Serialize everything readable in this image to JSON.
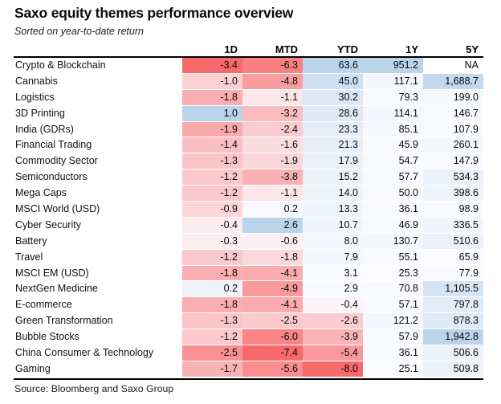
{
  "title": "Saxo equity themes performance overview",
  "subtitle": "Sorted on year-to-date return",
  "source": "Source: Bloomberg and Saxo Group",
  "na_label": "NA",
  "color_scale": {
    "negative_end": "#F8696B",
    "neutral": "#FCFCFF",
    "positive_end": "#BAD4EC",
    "normalization": "per-column, each sign scaled to column extreme, white at zero"
  },
  "chart_data": {
    "type": "heatmap",
    "title": "Saxo equity themes performance overview",
    "subtitle": "Sorted on year-to-date return",
    "source": "Source: Bloomberg and Saxo Group",
    "columns": [
      "1D",
      "MTD",
      "YTD",
      "1Y",
      "5Y"
    ],
    "value_unit": "percent return",
    "legend_position": "none",
    "grid": false,
    "rows": [
      {
        "name": "Crypto & Blockchain",
        "values": [
          -3.4,
          -6.3,
          63.6,
          951.2,
          null
        ]
      },
      {
        "name": "Cannabis",
        "values": [
          -1.0,
          -4.8,
          45.0,
          117.1,
          1688.7
        ]
      },
      {
        "name": "Logistics",
        "values": [
          -1.8,
          -1.1,
          30.2,
          79.3,
          199.0
        ]
      },
      {
        "name": "3D Printing",
        "values": [
          1.0,
          -3.2,
          28.6,
          114.1,
          146.7
        ]
      },
      {
        "name": "India (GDRs)",
        "values": [
          -1.9,
          -2.4,
          23.3,
          85.1,
          107.9
        ]
      },
      {
        "name": "Financial Trading",
        "values": [
          -1.4,
          -1.6,
          21.3,
          45.9,
          260.1
        ]
      },
      {
        "name": "Commodity Sector",
        "values": [
          -1.3,
          -1.9,
          17.9,
          54.7,
          147.9
        ]
      },
      {
        "name": "Semiconductors",
        "values": [
          -1.2,
          -3.8,
          15.2,
          57.7,
          534.3
        ]
      },
      {
        "name": "Mega Caps",
        "values": [
          -1.2,
          -1.1,
          14.0,
          50.0,
          398.6
        ]
      },
      {
        "name": "MSCI World (USD)",
        "values": [
          -0.9,
          0.2,
          13.3,
          36.1,
          98.9
        ]
      },
      {
        "name": "Cyber Security",
        "values": [
          -0.4,
          2.6,
          10.7,
          46.9,
          336.5
        ]
      },
      {
        "name": "Battery",
        "values": [
          -0.3,
          -0.6,
          8.0,
          130.7,
          510.6
        ]
      },
      {
        "name": "Travel",
        "values": [
          -1.2,
          -1.8,
          7.9,
          55.1,
          65.9
        ]
      },
      {
        "name": "MSCI EM (USD)",
        "values": [
          -1.8,
          -4.1,
          3.1,
          25.3,
          77.9
        ]
      },
      {
        "name": "NextGen Medicine",
        "values": [
          0.2,
          -4.9,
          2.9,
          70.8,
          1105.5
        ]
      },
      {
        "name": "E-commerce",
        "values": [
          -1.8,
          -4.1,
          -0.4,
          57.1,
          797.8
        ]
      },
      {
        "name": "Green Transformation",
        "values": [
          -1.3,
          -2.5,
          -2.6,
          121.2,
          878.3
        ]
      },
      {
        "name": "Bubble Stocks",
        "values": [
          -1.2,
          -6.0,
          -3.9,
          57.9,
          1942.8
        ]
      },
      {
        "name": "China Consumer & Technology",
        "values": [
          -2.5,
          -7.4,
          -5.4,
          36.1,
          506.6
        ]
      },
      {
        "name": "Gaming",
        "values": [
          -1.7,
          -5.6,
          -8.0,
          25.1,
          509.8
        ]
      }
    ]
  }
}
